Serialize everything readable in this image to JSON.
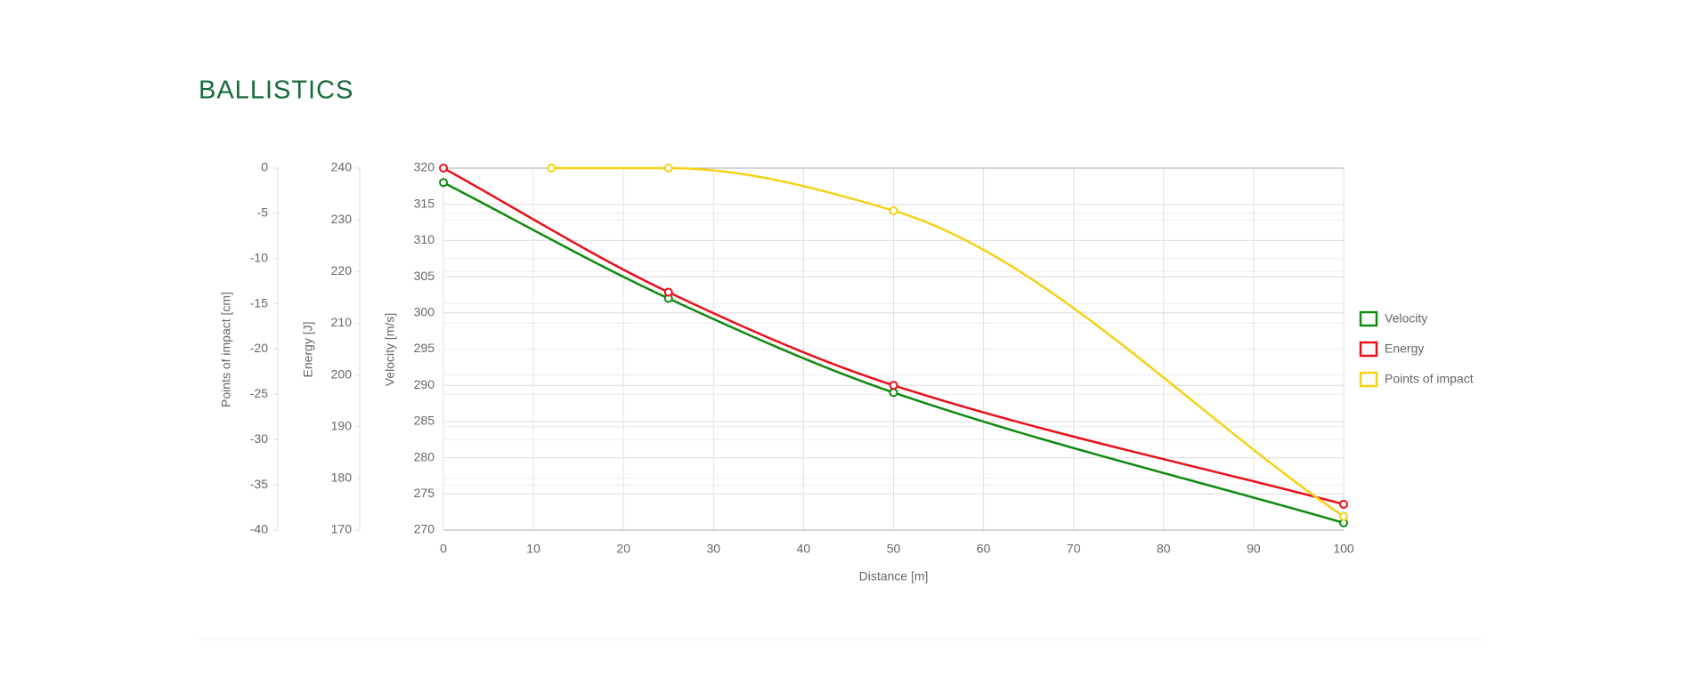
{
  "chart_data": {
    "type": "line",
    "title": "BALLISTICS",
    "xlabel": "Distance [m]",
    "xlim": [
      0,
      100
    ],
    "xticks": [
      0,
      10,
      20,
      30,
      40,
      50,
      60,
      70,
      80,
      90,
      100
    ],
    "ylabel": "Velocity [m/s]",
    "ylim": [
      270,
      320
    ],
    "yticks": [
      270,
      275,
      280,
      285,
      290,
      295,
      300,
      305,
      310,
      315,
      320
    ],
    "y2label": "Energy [J]",
    "y2lim": [
      170,
      240
    ],
    "y2ticks": [
      170,
      180,
      190,
      200,
      210,
      220,
      230,
      240
    ],
    "y3label": "Points of impact [cm]",
    "y3lim": [
      -40,
      0
    ],
    "y3ticks": [
      -40,
      -35,
      -30,
      -25,
      -20,
      -15,
      -10,
      -5,
      0
    ],
    "grid": true,
    "legend": "right",
    "series": [
      {
        "name": "Velocity",
        "color": "#118a11",
        "axis": "y",
        "x": [
          0,
          25,
          50,
          100
        ],
        "values": [
          318,
          302,
          289,
          271
        ]
      },
      {
        "name": "Energy",
        "color": "#e8101a",
        "axis": "y2",
        "x": [
          0,
          25,
          50,
          100
        ],
        "values": [
          240,
          216,
          198,
          175
        ]
      },
      {
        "name": "Points of impact",
        "color": "#f5d114",
        "axis": "y3",
        "x": [
          12,
          25,
          50,
          100
        ],
        "values": [
          0,
          0,
          -4.7,
          -38.5
        ]
      }
    ]
  }
}
